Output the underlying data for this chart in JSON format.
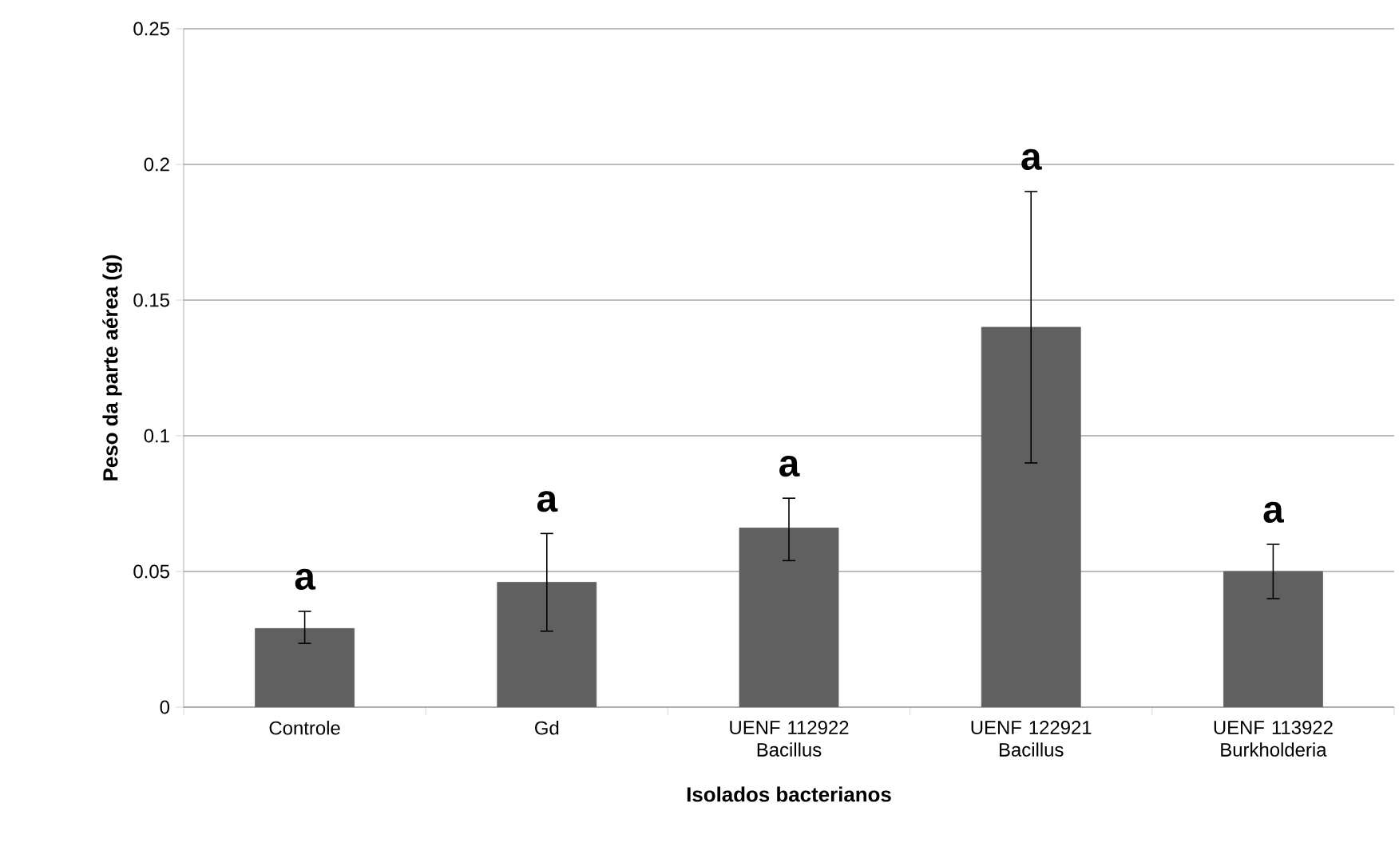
{
  "chart_data": {
    "type": "bar",
    "xlabel": "Isolados bacterianos",
    "ylabel": "Peso da parte aérea (g)",
    "categories": [
      "Controle",
      "Gd",
      "UENF 112922 Bacillus",
      "UENF 122921 Bacillus",
      "UENF 113922 Burkholderia"
    ],
    "values": [
      0.029,
      0.046,
      0.066,
      0.14,
      0.05
    ],
    "errors": [
      [
        0.0235,
        0.0353
      ],
      [
        0.028,
        0.064
      ],
      [
        0.054,
        0.077
      ],
      [
        0.09,
        0.19
      ],
      [
        0.04,
        0.06
      ]
    ],
    "color": "#606060",
    "ylim": [
      0,
      0.25
    ],
    "yticks": [
      0,
      0.05,
      0.1,
      0.15,
      0.2,
      0.25
    ],
    "grid": "y",
    "annotations": [
      "a",
      "a",
      "a",
      "a",
      "a"
    ]
  }
}
